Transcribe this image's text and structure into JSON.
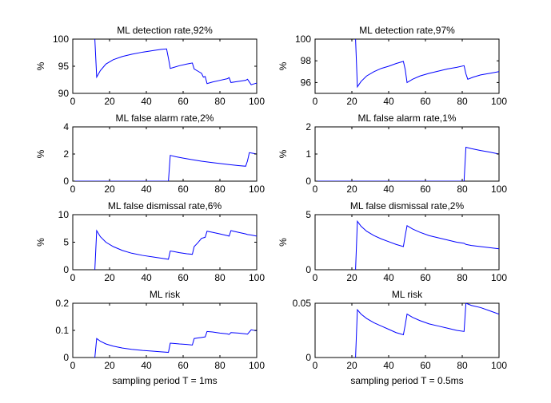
{
  "chart_data": [
    {
      "type": "line",
      "title": "ML detection rate,92%",
      "ylabel": "%",
      "xlabel": "",
      "xlim": [
        0,
        100
      ],
      "ylim": [
        90,
        100
      ],
      "xticks": [
        0,
        20,
        40,
        60,
        80,
        100
      ],
      "yticks": [
        90,
        95,
        100
      ],
      "series": [
        {
          "x": [
            12,
            13,
            15,
            18,
            22,
            27,
            32,
            38,
            44,
            48,
            51,
            52,
            53,
            55,
            58,
            62,
            65,
            66,
            68,
            70,
            71,
            72,
            73,
            76,
            80,
            84,
            85,
            86,
            90,
            94,
            95,
            97,
            98,
            100
          ],
          "values": [
            100,
            93,
            94.2,
            95.4,
            96.2,
            96.8,
            97.2,
            97.6,
            97.9,
            98.1,
            98.2,
            96.5,
            94.6,
            94.8,
            95.1,
            95.4,
            95.6,
            94.5,
            94.1,
            93.7,
            93.0,
            93.1,
            91.8,
            92.1,
            92.4,
            92.7,
            92.9,
            92.0,
            92.2,
            92.4,
            92.6,
            91.6,
            91.7,
            91.9
          ]
        }
      ]
    },
    {
      "type": "line",
      "title": "ML detection rate,97%",
      "ylabel": "%",
      "xlabel": "",
      "xlim": [
        0,
        100
      ],
      "ylim": [
        95,
        100
      ],
      "xticks": [
        0,
        20,
        40,
        60,
        80,
        100
      ],
      "yticks": [
        96,
        98,
        100
      ],
      "series": [
        {
          "x": [
            22,
            23,
            25,
            28,
            32,
            36,
            40,
            44,
            48,
            49,
            50,
            53,
            57,
            62,
            67,
            72,
            77,
            81,
            82,
            83,
            86,
            90,
            95,
            100
          ],
          "values": [
            100,
            95.6,
            96.1,
            96.6,
            97.0,
            97.3,
            97.5,
            97.75,
            97.95,
            97.2,
            96.0,
            96.3,
            96.6,
            96.85,
            97.05,
            97.25,
            97.4,
            97.55,
            96.8,
            96.3,
            96.5,
            96.7,
            96.85,
            97.0
          ]
        }
      ]
    },
    {
      "type": "line",
      "title": "ML false alarm rate,2%",
      "ylabel": "%",
      "xlabel": "",
      "xlim": [
        0,
        100
      ],
      "ylim": [
        0,
        4
      ],
      "xticks": [
        0,
        20,
        40,
        60,
        80,
        100
      ],
      "yticks": [
        0,
        2,
        4
      ],
      "series": [
        {
          "x": [
            0,
            52,
            53,
            56,
            60,
            65,
            70,
            75,
            80,
            85,
            90,
            94,
            95,
            96,
            98,
            100
          ],
          "values": [
            0,
            0,
            1.9,
            1.8,
            1.7,
            1.58,
            1.47,
            1.38,
            1.3,
            1.22,
            1.15,
            1.1,
            1.5,
            2.1,
            2.05,
            2.0
          ]
        }
      ]
    },
    {
      "type": "line",
      "title": "ML false alarm rate,1%",
      "ylabel": "%",
      "xlabel": "",
      "xlim": [
        0,
        100
      ],
      "ylim": [
        0,
        2
      ],
      "xticks": [
        0,
        20,
        40,
        60,
        80,
        100
      ],
      "yticks": [
        0,
        1,
        2
      ],
      "series": [
        {
          "x": [
            0,
            81,
            82,
            85,
            90,
            95,
            100
          ],
          "values": [
            0,
            0,
            1.25,
            1.2,
            1.13,
            1.07,
            1.0
          ]
        }
      ]
    },
    {
      "type": "line",
      "title": "ML false dismissal rate,6%",
      "ylabel": "%",
      "xlabel": "",
      "xlim": [
        0,
        100
      ],
      "ylim": [
        0,
        10
      ],
      "xticks": [
        0,
        20,
        40,
        60,
        80,
        100
      ],
      "yticks": [
        0,
        5,
        10
      ],
      "series": [
        {
          "x": [
            12,
            13,
            15,
            18,
            22,
            27,
            32,
            38,
            44,
            48,
            52,
            53,
            55,
            58,
            62,
            65,
            66,
            68,
            70,
            71,
            72,
            73,
            76,
            80,
            84,
            85,
            86,
            90,
            94,
            95,
            97,
            100
          ],
          "values": [
            0,
            7.1,
            6.0,
            5.0,
            4.2,
            3.5,
            3.0,
            2.6,
            2.3,
            2.1,
            1.9,
            3.4,
            3.3,
            3.1,
            2.9,
            2.8,
            4.2,
            4.9,
            5.7,
            5.8,
            5.9,
            7.0,
            6.8,
            6.5,
            6.2,
            6.1,
            7.1,
            6.8,
            6.5,
            6.4,
            6.3,
            6.1
          ]
        }
      ]
    },
    {
      "type": "line",
      "title": "ML false dismissal rate,2%",
      "ylabel": "%",
      "xlabel": "",
      "xlim": [
        0,
        100
      ],
      "ylim": [
        0,
        5
      ],
      "xticks": [
        0,
        20,
        40,
        60,
        80,
        100
      ],
      "yticks": [
        0,
        5
      ],
      "series": [
        {
          "x": [
            22,
            23,
            25,
            28,
            32,
            36,
            40,
            44,
            48,
            49,
            50,
            53,
            57,
            62,
            67,
            72,
            77,
            81,
            82,
            85,
            90,
            95,
            100
          ],
          "values": [
            0,
            4.4,
            3.95,
            3.5,
            3.1,
            2.8,
            2.55,
            2.3,
            2.1,
            3.1,
            4.0,
            3.7,
            3.4,
            3.1,
            2.9,
            2.7,
            2.5,
            2.4,
            2.3,
            2.2,
            2.1,
            2.0,
            1.9
          ]
        }
      ]
    },
    {
      "type": "line",
      "title": "ML risk",
      "ylabel": "",
      "xlabel": "sampling period T = 1ms",
      "xlim": [
        0,
        100
      ],
      "ylim": [
        0,
        0.2
      ],
      "xticks": [
        0,
        20,
        40,
        60,
        80,
        100
      ],
      "yticks": [
        0,
        0.1,
        0.2
      ],
      "series": [
        {
          "x": [
            12,
            13,
            15,
            18,
            22,
            27,
            32,
            38,
            44,
            48,
            52,
            53,
            55,
            58,
            62,
            65,
            66,
            68,
            70,
            71,
            72,
            73,
            76,
            80,
            84,
            85,
            86,
            90,
            94,
            95,
            97,
            100
          ],
          "values": [
            0,
            0.07,
            0.06,
            0.05,
            0.042,
            0.035,
            0.03,
            0.026,
            0.023,
            0.021,
            0.019,
            0.053,
            0.052,
            0.05,
            0.048,
            0.046,
            0.07,
            0.072,
            0.074,
            0.075,
            0.076,
            0.096,
            0.094,
            0.09,
            0.087,
            0.085,
            0.092,
            0.09,
            0.087,
            0.086,
            0.102,
            0.098
          ]
        }
      ]
    },
    {
      "type": "line",
      "title": "ML risk",
      "ylabel": "",
      "xlabel": "sampling period T = 0.5ms",
      "xlim": [
        0,
        100
      ],
      "ylim": [
        0,
        0.05
      ],
      "xticks": [
        0,
        20,
        40,
        60,
        80,
        100
      ],
      "yticks": [
        0,
        0.05
      ],
      "series": [
        {
          "x": [
            22,
            23,
            25,
            28,
            32,
            36,
            40,
            44,
            48,
            49,
            50,
            53,
            57,
            62,
            67,
            72,
            77,
            81,
            82,
            85,
            90,
            95,
            100
          ],
          "values": [
            0,
            0.044,
            0.04,
            0.036,
            0.032,
            0.029,
            0.026,
            0.023,
            0.021,
            0.03,
            0.04,
            0.037,
            0.034,
            0.031,
            0.029,
            0.027,
            0.025,
            0.024,
            0.05,
            0.048,
            0.046,
            0.043,
            0.04
          ]
        }
      ]
    }
  ]
}
